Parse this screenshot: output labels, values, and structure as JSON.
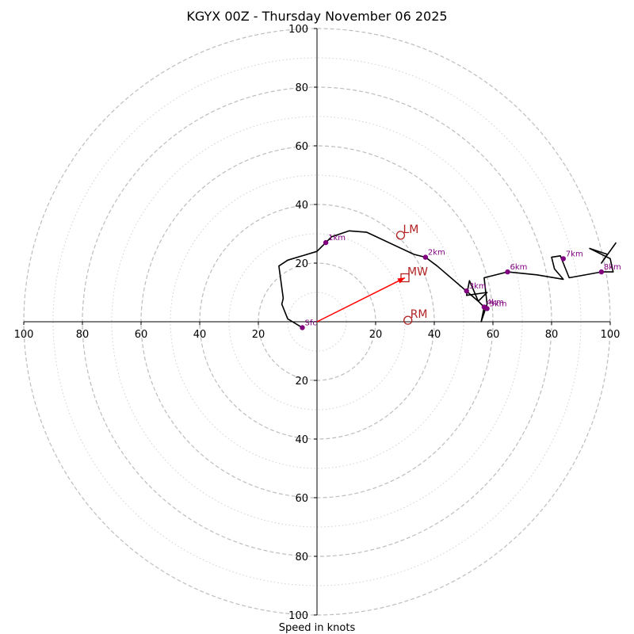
{
  "chart_data": {
    "type": "hodograph",
    "title": "KGYX 00Z - Thursday November 06 2025",
    "xlabel": "Speed in knots",
    "range_max": 100,
    "major_rings": [
      20,
      40,
      60,
      80,
      100
    ],
    "minor_rings": [
      10,
      30,
      50,
      70,
      90
    ],
    "tick_values": [
      20,
      40,
      60,
      80,
      100
    ],
    "tick_labels": [
      "20",
      "40",
      "60",
      "80",
      "100"
    ],
    "trace_color": "#000000",
    "height_marker_color": "#800080",
    "storm_motion_color": "#b22222",
    "mean_wind_vector_color": "#ff0000",
    "trace": [
      {
        "u": -5,
        "v": -2
      },
      {
        "u": -10,
        "v": 1
      },
      {
        "u": -12,
        "v": 6
      },
      {
        "u": -11.5,
        "v": 8
      },
      {
        "u": -13,
        "v": 19
      },
      {
        "u": -10,
        "v": 21
      },
      {
        "u": 0,
        "v": 24
      },
      {
        "u": 3,
        "v": 27
      },
      {
        "u": 5,
        "v": 29
      },
      {
        "u": 11,
        "v": 31
      },
      {
        "u": 17,
        "v": 30.5
      },
      {
        "u": 33,
        "v": 23
      },
      {
        "u": 37,
        "v": 22
      },
      {
        "u": 41,
        "v": 19
      },
      {
        "u": 55,
        "v": 7
      },
      {
        "u": 52,
        "v": 14
      },
      {
        "u": 51,
        "v": 9
      },
      {
        "u": 58,
        "v": 10
      },
      {
        "u": 55,
        "v": 7
      },
      {
        "u": 57,
        "v": 5
      },
      {
        "u": 56,
        "v": 0
      },
      {
        "u": 58,
        "v": 6
      },
      {
        "u": 57,
        "v": 15
      },
      {
        "u": 65,
        "v": 17
      },
      {
        "u": 75,
        "v": 16
      },
      {
        "u": 84,
        "v": 14.5
      },
      {
        "u": 81,
        "v": 18
      },
      {
        "u": 80,
        "v": 22
      },
      {
        "u": 83,
        "v": 22.5
      },
      {
        "u": 86,
        "v": 15
      },
      {
        "u": 97,
        "v": 17
      },
      {
        "u": 101,
        "v": 17
      },
      {
        "u": 100,
        "v": 21.5
      },
      {
        "u": 93,
        "v": 25
      },
      {
        "u": 99,
        "v": 23
      },
      {
        "u": 97,
        "v": 20
      },
      {
        "u": 102,
        "v": 27
      }
    ],
    "height_markers": [
      {
        "label": "Sfc",
        "u": -5,
        "v": -2
      },
      {
        "label": "1km",
        "u": 3,
        "v": 27
      },
      {
        "label": "2km",
        "u": 37,
        "v": 22
      },
      {
        "label": "3km",
        "u": 51,
        "v": 10.5
      },
      {
        "label": "4km",
        "u": 57,
        "v": 5
      },
      {
        "label": "5km",
        "u": 58,
        "v": 4.5
      },
      {
        "label": "6km",
        "u": 65,
        "v": 17
      },
      {
        "label": "7km",
        "u": 84,
        "v": 21.5
      },
      {
        "label": "8km",
        "u": 97,
        "v": 17
      }
    ],
    "storm_motion": [
      {
        "label": "LM",
        "u": 28.5,
        "v": 29.5,
        "shape": "circle"
      },
      {
        "label": "MW",
        "u": 30,
        "v": 15,
        "shape": "square"
      },
      {
        "label": "RM",
        "u": 31,
        "v": 0.5,
        "shape": "circle"
      }
    ],
    "mean_wind_vector": {
      "from_u": 0,
      "from_v": 0,
      "to_u": 30,
      "to_v": 15
    }
  }
}
